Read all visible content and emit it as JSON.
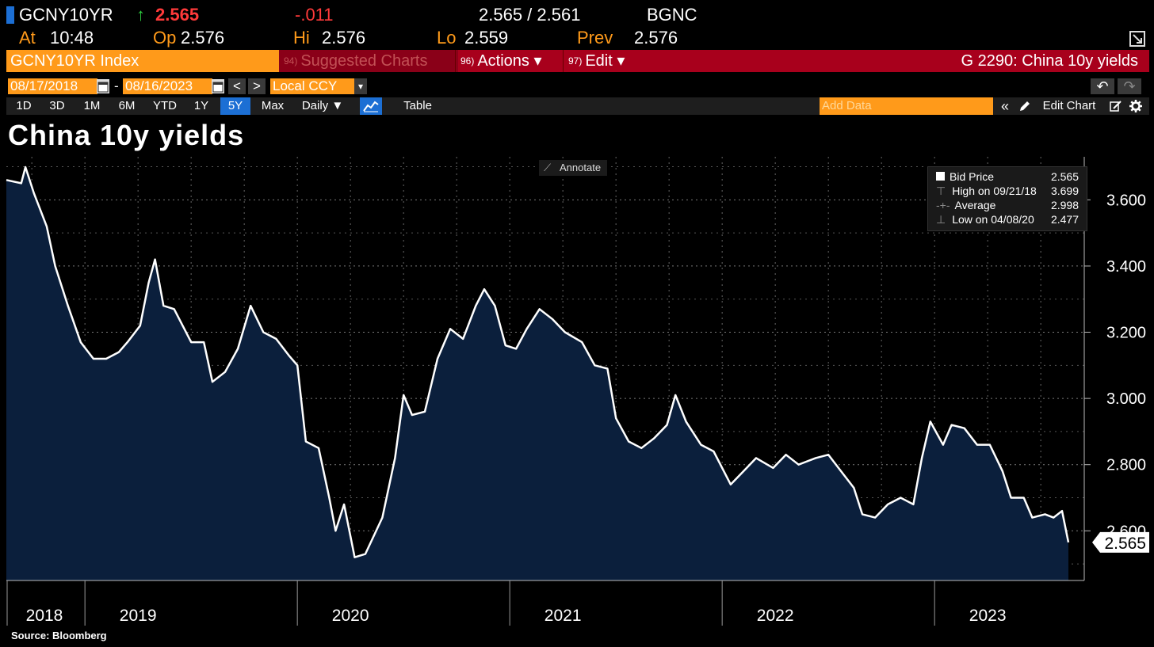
{
  "header": {
    "ticker": "GCNY10YR",
    "arrow": "↑",
    "last": "2.565",
    "change": "-.011",
    "bid_ask": "2.565 / 2.561",
    "source_code": "BGNC",
    "at_label": "At",
    "at_time": "10:48",
    "op_label": "Op",
    "op_value": "2.576",
    "hi_label": "Hi",
    "hi_value": "2.576",
    "lo_label": "Lo",
    "lo_value": "2.559",
    "prev_label": "Prev",
    "prev_value": "2.576"
  },
  "menu": {
    "index_name": "GCNY10YR Index",
    "suggested_num": "94)",
    "suggested": "Suggested Charts",
    "actions_num": "96)",
    "actions": "Actions ▾",
    "edit_num": "97)",
    "edit": "Edit ▾",
    "chart_id": "G 2290: China 10y yields"
  },
  "dates": {
    "start": "08/17/2018",
    "sep": "-",
    "end": "08/16/2023",
    "currency": "Local CCY",
    "currency_arrow": "▾",
    "prev": "<",
    "next": ">",
    "undo": "↶",
    "redo": "↷"
  },
  "range": {
    "buttons": [
      "1D",
      "3D",
      "1M",
      "6M",
      "YTD",
      "1Y",
      "5Y",
      "Max"
    ],
    "active": "5Y",
    "frequency": "Daily ▼",
    "table": "Table",
    "add_data": "Add Data",
    "collapse": "«",
    "edit_chart": "Edit Chart"
  },
  "annotate": "Annotate",
  "legend": {
    "bid_label": "Bid Price",
    "bid_value": "2.565",
    "high_label": "High on 09/21/18",
    "high_value": "3.699",
    "avg_label": "Average",
    "avg_value": "2.998",
    "low_label": "Low on 04/08/20",
    "low_value": "2.477"
  },
  "source": "Source: Bloomberg",
  "colors": {
    "area_fill": "#0b1f3c",
    "line": "#ffffff",
    "accent_orange": "#ff9a1a",
    "menu_red": "#a8001c",
    "active_blue": "#1c6fd4"
  },
  "chart_data": {
    "type": "area",
    "title": "China 10y yields",
    "xlabel": "",
    "ylabel": "",
    "x_start": 2018.63,
    "x_end": 2023.63,
    "ylim": [
      2.45,
      3.73
    ],
    "y_ticks": [
      2.6,
      2.8,
      3.0,
      3.2,
      3.4,
      3.6
    ],
    "y_tick_labels": [
      "2.600",
      "2.800",
      "3.000",
      "3.200",
      "3.400",
      "3.600"
    ],
    "x_labels": [
      "2018",
      "2019",
      "2020",
      "2021",
      "2022",
      "2023"
    ],
    "x_label_positions": [
      2018.63,
      2019.25,
      2020.25,
      2021.25,
      2022.25,
      2023.25
    ],
    "year_boundaries": [
      2019.0,
      2020.0,
      2021.0,
      2022.0,
      2023.0
    ],
    "last_value_label": "2.565",
    "series": [
      {
        "name": "Bid Price",
        "points": [
          [
            2018.63,
            3.66
          ],
          [
            2018.7,
            3.65
          ],
          [
            2018.72,
            3.699
          ],
          [
            2018.76,
            3.62
          ],
          [
            2018.82,
            3.52
          ],
          [
            2018.86,
            3.4
          ],
          [
            2018.92,
            3.28
          ],
          [
            2018.98,
            3.17
          ],
          [
            2019.04,
            3.12
          ],
          [
            2019.1,
            3.12
          ],
          [
            2019.16,
            3.14
          ],
          [
            2019.2,
            3.17
          ],
          [
            2019.26,
            3.22
          ],
          [
            2019.3,
            3.35
          ],
          [
            2019.33,
            3.42
          ],
          [
            2019.37,
            3.28
          ],
          [
            2019.42,
            3.27
          ],
          [
            2019.5,
            3.17
          ],
          [
            2019.56,
            3.17
          ],
          [
            2019.6,
            3.05
          ],
          [
            2019.66,
            3.08
          ],
          [
            2019.72,
            3.15
          ],
          [
            2019.78,
            3.28
          ],
          [
            2019.84,
            3.2
          ],
          [
            2019.9,
            3.18
          ],
          [
            2019.96,
            3.13
          ],
          [
            2020.0,
            3.1
          ],
          [
            2020.04,
            2.87
          ],
          [
            2020.1,
            2.85
          ],
          [
            2020.15,
            2.7
          ],
          [
            2020.18,
            2.6
          ],
          [
            2020.22,
            2.68
          ],
          [
            2020.27,
            2.52
          ],
          [
            2020.32,
            2.53
          ],
          [
            2020.4,
            2.64
          ],
          [
            2020.46,
            2.82
          ],
          [
            2020.5,
            3.01
          ],
          [
            2020.54,
            2.95
          ],
          [
            2020.6,
            2.96
          ],
          [
            2020.66,
            3.12
          ],
          [
            2020.72,
            3.21
          ],
          [
            2020.78,
            3.18
          ],
          [
            2020.84,
            3.28
          ],
          [
            2020.88,
            3.33
          ],
          [
            2020.93,
            3.28
          ],
          [
            2020.98,
            3.16
          ],
          [
            2021.03,
            3.15
          ],
          [
            2021.08,
            3.21
          ],
          [
            2021.14,
            3.27
          ],
          [
            2021.2,
            3.24
          ],
          [
            2021.26,
            3.2
          ],
          [
            2021.34,
            3.17
          ],
          [
            2021.4,
            3.1
          ],
          [
            2021.46,
            3.09
          ],
          [
            2021.5,
            2.94
          ],
          [
            2021.56,
            2.87
          ],
          [
            2021.62,
            2.85
          ],
          [
            2021.68,
            2.88
          ],
          [
            2021.74,
            2.92
          ],
          [
            2021.78,
            3.01
          ],
          [
            2021.83,
            2.93
          ],
          [
            2021.9,
            2.86
          ],
          [
            2021.96,
            2.84
          ],
          [
            2022.04,
            2.74
          ],
          [
            2022.1,
            2.78
          ],
          [
            2022.16,
            2.82
          ],
          [
            2022.24,
            2.79
          ],
          [
            2022.3,
            2.83
          ],
          [
            2022.36,
            2.8
          ],
          [
            2022.44,
            2.82
          ],
          [
            2022.5,
            2.83
          ],
          [
            2022.56,
            2.78
          ],
          [
            2022.62,
            2.73
          ],
          [
            2022.66,
            2.65
          ],
          [
            2022.72,
            2.64
          ],
          [
            2022.78,
            2.68
          ],
          [
            2022.84,
            2.7
          ],
          [
            2022.9,
            2.68
          ],
          [
            2022.94,
            2.82
          ],
          [
            2022.98,
            2.93
          ],
          [
            2023.04,
            2.86
          ],
          [
            2023.08,
            2.92
          ],
          [
            2023.14,
            2.91
          ],
          [
            2023.2,
            2.86
          ],
          [
            2023.26,
            2.86
          ],
          [
            2023.32,
            2.78
          ],
          [
            2023.36,
            2.7
          ],
          [
            2023.42,
            2.7
          ],
          [
            2023.46,
            2.64
          ],
          [
            2023.52,
            2.65
          ],
          [
            2023.56,
            2.64
          ],
          [
            2023.6,
            2.66
          ],
          [
            2023.63,
            2.565
          ]
        ]
      }
    ]
  }
}
